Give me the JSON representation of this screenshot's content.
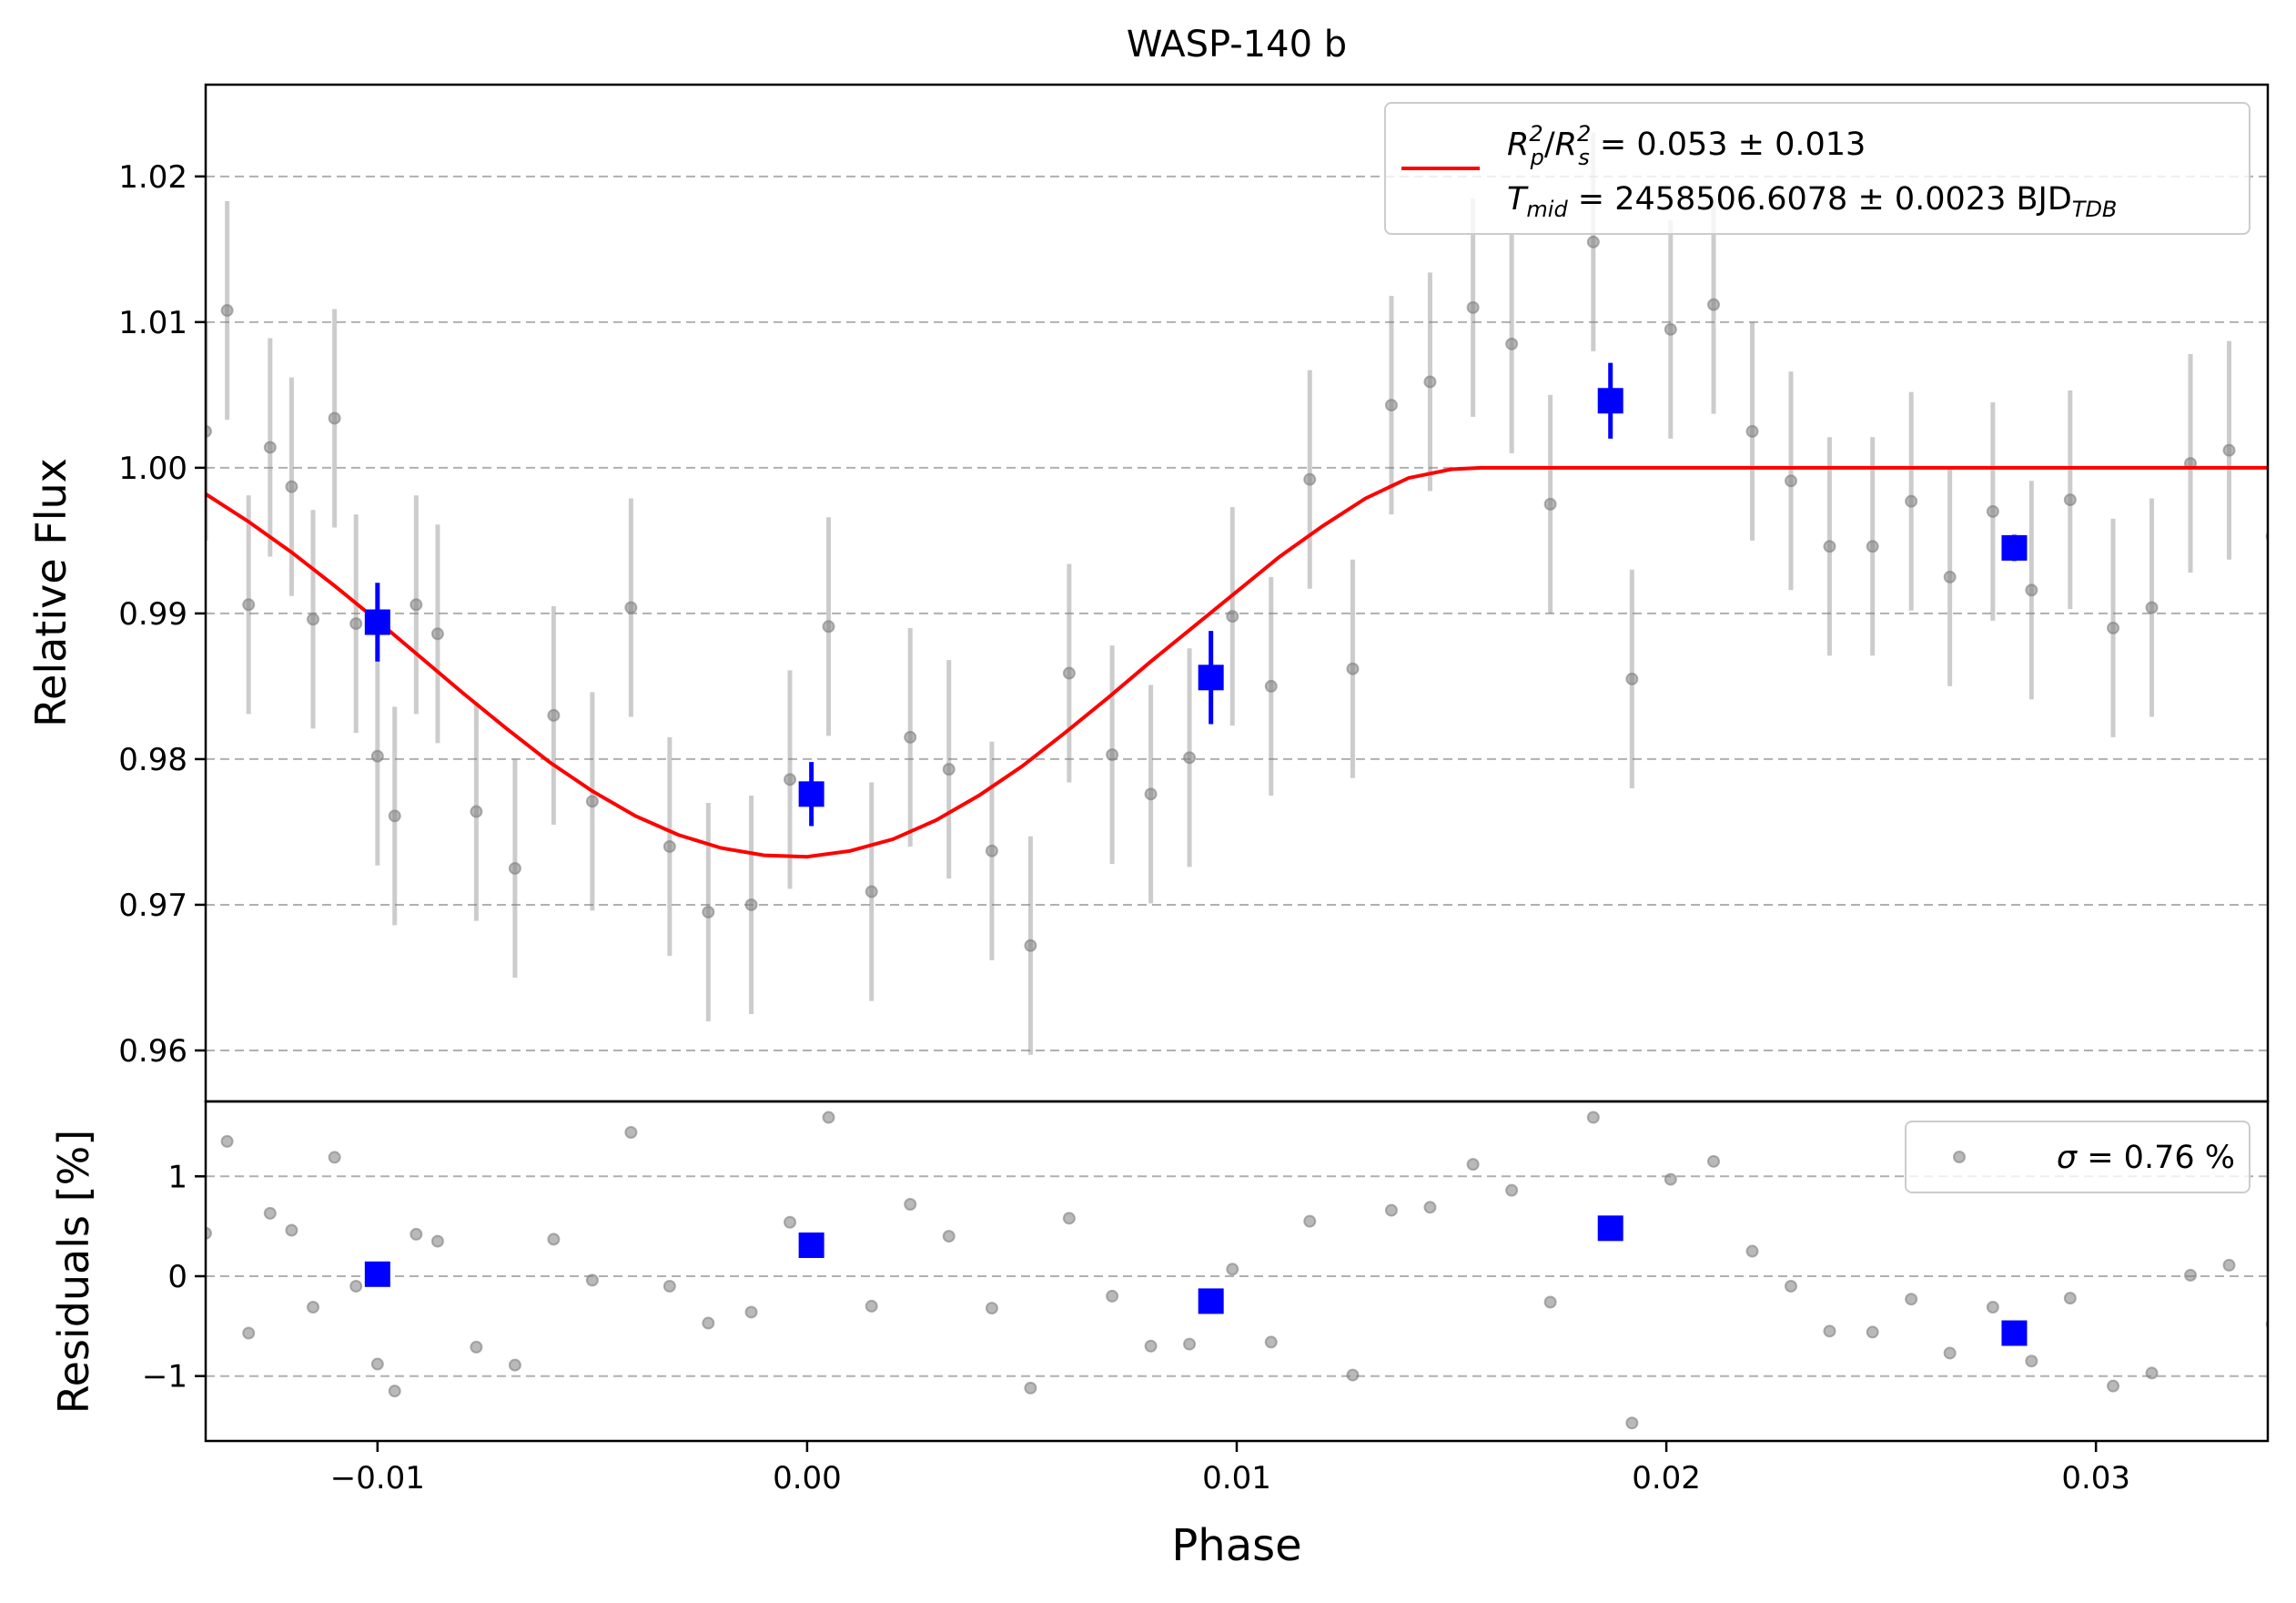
{
  "chart_data": [
    {
      "type": "scatter",
      "title": "WASP-140 b",
      "xlabel": "",
      "ylabel": "Relative Flux",
      "xlim": [
        -0.014,
        0.034
      ],
      "ylim": [
        0.9565,
        1.0263
      ],
      "grid": "horizontal dashed",
      "yticks": [
        0.96,
        0.97,
        0.98,
        0.99,
        1.0,
        1.01,
        1.02
      ],
      "ytick_labels": [
        "0.96",
        "0.97",
        "0.98",
        "0.99",
        "1.00",
        "1.01",
        "1.02"
      ],
      "legend": {
        "placement": "top-right",
        "line1": {
          "lhs": "R²p/R²s",
          "value": " = 0.053 ± 0.013"
        },
        "line2": {
          "lhs": "Tmid",
          "value": " = 2458506.6078 ± 0.0023 BJD",
          "sub": "TDB"
        }
      },
      "series": [
        {
          "kind": "points-with-errorbars",
          "color": "#808080",
          "x": [
            -0.014,
            -0.0135,
            -0.013,
            -0.0125,
            -0.012,
            -0.0115,
            -0.011,
            -0.0105,
            -0.01,
            -0.0096,
            -0.0091,
            -0.0086,
            -0.0077,
            -0.0068,
            -0.0059,
            -0.005,
            -0.0041,
            -0.0032,
            -0.0023,
            -0.0013,
            -0.0004,
            0.0005,
            0.0015,
            0.0024,
            0.0033,
            0.0043,
            0.0052,
            0.0061,
            0.0071,
            0.008,
            0.0089,
            0.0099,
            0.0108,
            0.0117,
            0.0127,
            0.0136,
            0.0145,
            0.0155,
            0.0164,
            0.0173,
            0.0183,
            0.0192,
            0.0201,
            0.0211,
            0.022,
            0.0229,
            0.0238,
            0.0248,
            0.0257,
            0.0266,
            0.0276,
            0.0285,
            0.0294,
            0.0304,
            0.0313,
            0.0322,
            0.0331,
            0.0341
          ],
          "y": [
            1.0025,
            1.0108,
            0.9906,
            1.0014,
            0.9987,
            0.9896,
            1.0034,
            0.9893,
            0.9802,
            0.9761,
            0.9906,
            0.9886,
            0.9764,
            0.9725,
            0.983,
            0.9771,
            0.9904,
            0.974,
            0.9695,
            0.97,
            0.9786,
            0.9891,
            0.9709,
            0.9815,
            0.9793,
            0.9737,
            0.9672,
            0.9859,
            0.9803,
            0.9776,
            0.9801,
            0.9898,
            0.985,
            0.9992,
            0.9862,
            1.0043,
            1.0059,
            1.011,
            1.0085,
            0.9975,
            1.0155,
            0.9855,
            1.0095,
            1.0112,
            1.0025,
            0.9991,
            0.9946,
            0.9946,
            0.9977,
            0.9925,
            0.997,
            0.9916,
            0.9978,
            0.989,
            0.9904,
            1.0003,
            1.0012,
            0.9953
          ],
          "yerr": [
            0.0075,
            0.0075,
            0.0075,
            0.0075,
            0.0075,
            0.0075,
            0.0075,
            0.0075,
            0.0075,
            0.0075,
            0.0075,
            0.0075,
            0.0075,
            0.0075,
            0.0075,
            0.0075,
            0.0075,
            0.0075,
            0.0075,
            0.0075,
            0.0075,
            0.0075,
            0.0075,
            0.0075,
            0.0075,
            0.0075,
            0.0075,
            0.0075,
            0.0075,
            0.0075,
            0.0075,
            0.0075,
            0.0075,
            0.0075,
            0.0075,
            0.0075,
            0.0075,
            0.0075,
            0.0075,
            0.0075,
            0.0075,
            0.0075,
            0.0075,
            0.0075,
            0.0075,
            0.0075,
            0.0075,
            0.0075,
            0.0075,
            0.0075,
            0.0075,
            0.0075,
            0.0075,
            0.0075,
            0.0075,
            0.0075,
            0.0075,
            0.0075
          ]
        },
        {
          "kind": "binned",
          "color": "#0000ff",
          "x": [
            -0.01,
            0.0001,
            0.0094,
            0.0187,
            0.0281
          ],
          "y": [
            0.9894,
            0.9776,
            0.9856,
            1.0046,
            0.9945
          ],
          "yerr": [
            0.0027,
            0.0022,
            0.0032,
            0.0026,
            0.0009
          ]
        },
        {
          "kind": "model-line",
          "color": "#ff0000",
          "x": [
            -0.014,
            -0.013,
            -0.012,
            -0.011,
            -0.01,
            -0.009,
            -0.008,
            -0.007,
            -0.006,
            -0.005,
            -0.004,
            -0.003,
            -0.002,
            -0.001,
            0.0,
            0.001,
            0.002,
            0.003,
            0.004,
            0.005,
            0.006,
            0.007,
            0.008,
            0.009,
            0.01,
            0.011,
            0.012,
            0.013,
            0.014,
            0.015,
            0.0157,
            0.02,
            0.025,
            0.03,
            0.034
          ],
          "y": [
            0.9982,
            0.9963,
            0.9942,
            0.9919,
            0.9895,
            0.987,
            0.9845,
            0.9821,
            0.9798,
            0.9778,
            0.9761,
            0.9748,
            0.9739,
            0.9734,
            0.9733,
            0.9737,
            0.9745,
            0.9758,
            0.9775,
            0.9795,
            0.9818,
            0.9842,
            0.9867,
            0.9891,
            0.9915,
            0.9939,
            0.996,
            0.9979,
            0.9993,
            0.9999,
            1.0,
            1.0,
            1.0,
            1.0,
            1.0
          ]
        }
      ]
    },
    {
      "type": "scatter",
      "title": "",
      "xlabel": "Phase",
      "ylabel": "Residuals [%]",
      "xlim": [
        -0.014,
        0.034
      ],
      "ylim": [
        -1.65,
        1.75
      ],
      "grid": "horizontal dashed",
      "yticks": [
        -1,
        0,
        1
      ],
      "ytick_labels": [
        "−1",
        "0",
        "1"
      ],
      "xticks": [
        -0.01,
        0.0,
        0.01,
        0.02,
        0.03
      ],
      "xtick_labels": [
        "−0.01",
        "0.00",
        "0.01",
        "0.02",
        "0.03"
      ],
      "legend": {
        "placement": "top-right",
        "sigma_symbol": "σ",
        "text": " = 0.76 %"
      },
      "series": [
        {
          "kind": "points",
          "color": "#808080",
          "x": [
            -0.014,
            -0.0135,
            -0.013,
            -0.0125,
            -0.012,
            -0.0115,
            -0.011,
            -0.0105,
            -0.01,
            -0.0096,
            -0.0091,
            -0.0086,
            -0.0077,
            -0.0068,
            -0.0059,
            -0.005,
            -0.0041,
            -0.0032,
            -0.0023,
            -0.0013,
            -0.0004,
            0.0005,
            0.0015,
            0.0024,
            0.0033,
            0.0043,
            0.0052,
            0.0061,
            0.0071,
            0.008,
            0.0089,
            0.0099,
            0.0108,
            0.0117,
            0.0127,
            0.0136,
            0.0145,
            0.0155,
            0.0164,
            0.0173,
            0.0183,
            0.0192,
            0.0201,
            0.0211,
            0.022,
            0.0229,
            0.0238,
            0.0248,
            0.0257,
            0.0266,
            0.0276,
            0.0285,
            0.0294,
            0.0304,
            0.0313,
            0.0322,
            0.0331,
            0.0341
          ],
          "y": [
            0.43,
            1.35,
            -0.57,
            0.63,
            0.46,
            -0.31,
            1.19,
            -0.1,
            -0.88,
            -1.15,
            0.42,
            0.35,
            -0.71,
            -0.89,
            0.37,
            -0.04,
            1.44,
            -0.1,
            -0.47,
            -0.36,
            0.54,
            1.59,
            -0.3,
            0.72,
            0.4,
            -0.32,
            -1.12,
            0.58,
            -0.2,
            -0.7,
            -0.68,
            0.07,
            -0.66,
            0.55,
            -0.99,
            0.66,
            0.69,
            1.12,
            0.86,
            -0.26,
            1.59,
            -1.47,
            0.97,
            1.15,
            0.25,
            -0.1,
            -0.55,
            -0.56,
            -0.23,
            -0.77,
            -0.31,
            -0.85,
            -0.22,
            -1.1,
            -0.97,
            0.01,
            0.11,
            -0.48
          ]
        },
        {
          "kind": "binned",
          "color": "#0000ff",
          "x": [
            -0.01,
            0.0001,
            0.0094,
            0.0187,
            0.0281
          ],
          "y": [
            0.02,
            0.31,
            -0.25,
            0.48,
            -0.57
          ]
        }
      ]
    }
  ]
}
